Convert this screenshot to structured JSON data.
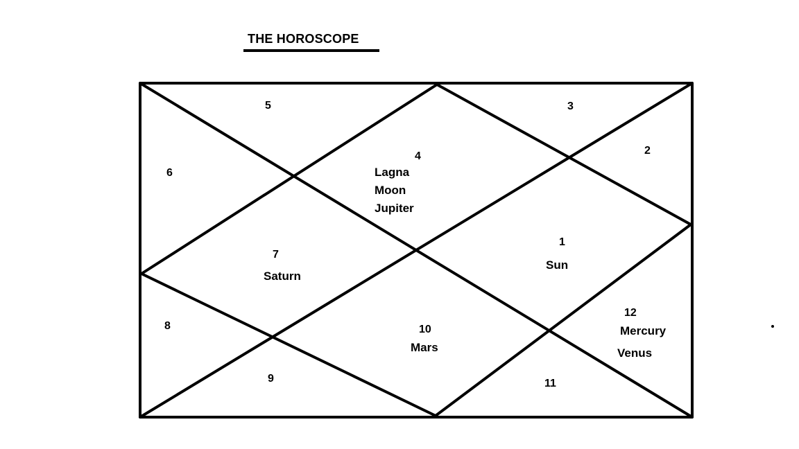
{
  "title": "THE HOROSCOPE",
  "houses": {
    "h1": {
      "number": "1",
      "planets": [
        "Sun"
      ]
    },
    "h2": {
      "number": "2",
      "planets": []
    },
    "h3": {
      "number": "3",
      "planets": []
    },
    "h4": {
      "number": "4",
      "planets": [
        "Lagna",
        "Moon",
        "Jupiter"
      ]
    },
    "h5": {
      "number": "5",
      "planets": []
    },
    "h6": {
      "number": "6",
      "planets": []
    },
    "h7": {
      "number": "7",
      "planets": [
        "Saturn"
      ]
    },
    "h8": {
      "number": "8",
      "planets": []
    },
    "h9": {
      "number": "9",
      "planets": []
    },
    "h10": {
      "number": "10",
      "planets": [
        "Mars"
      ]
    },
    "h11": {
      "number": "11",
      "planets": []
    },
    "h12": {
      "number": "12",
      "planets": [
        "Mercury",
        "Venus"
      ]
    }
  },
  "colors": {
    "ink": "#000000",
    "background": "#ffffff"
  }
}
